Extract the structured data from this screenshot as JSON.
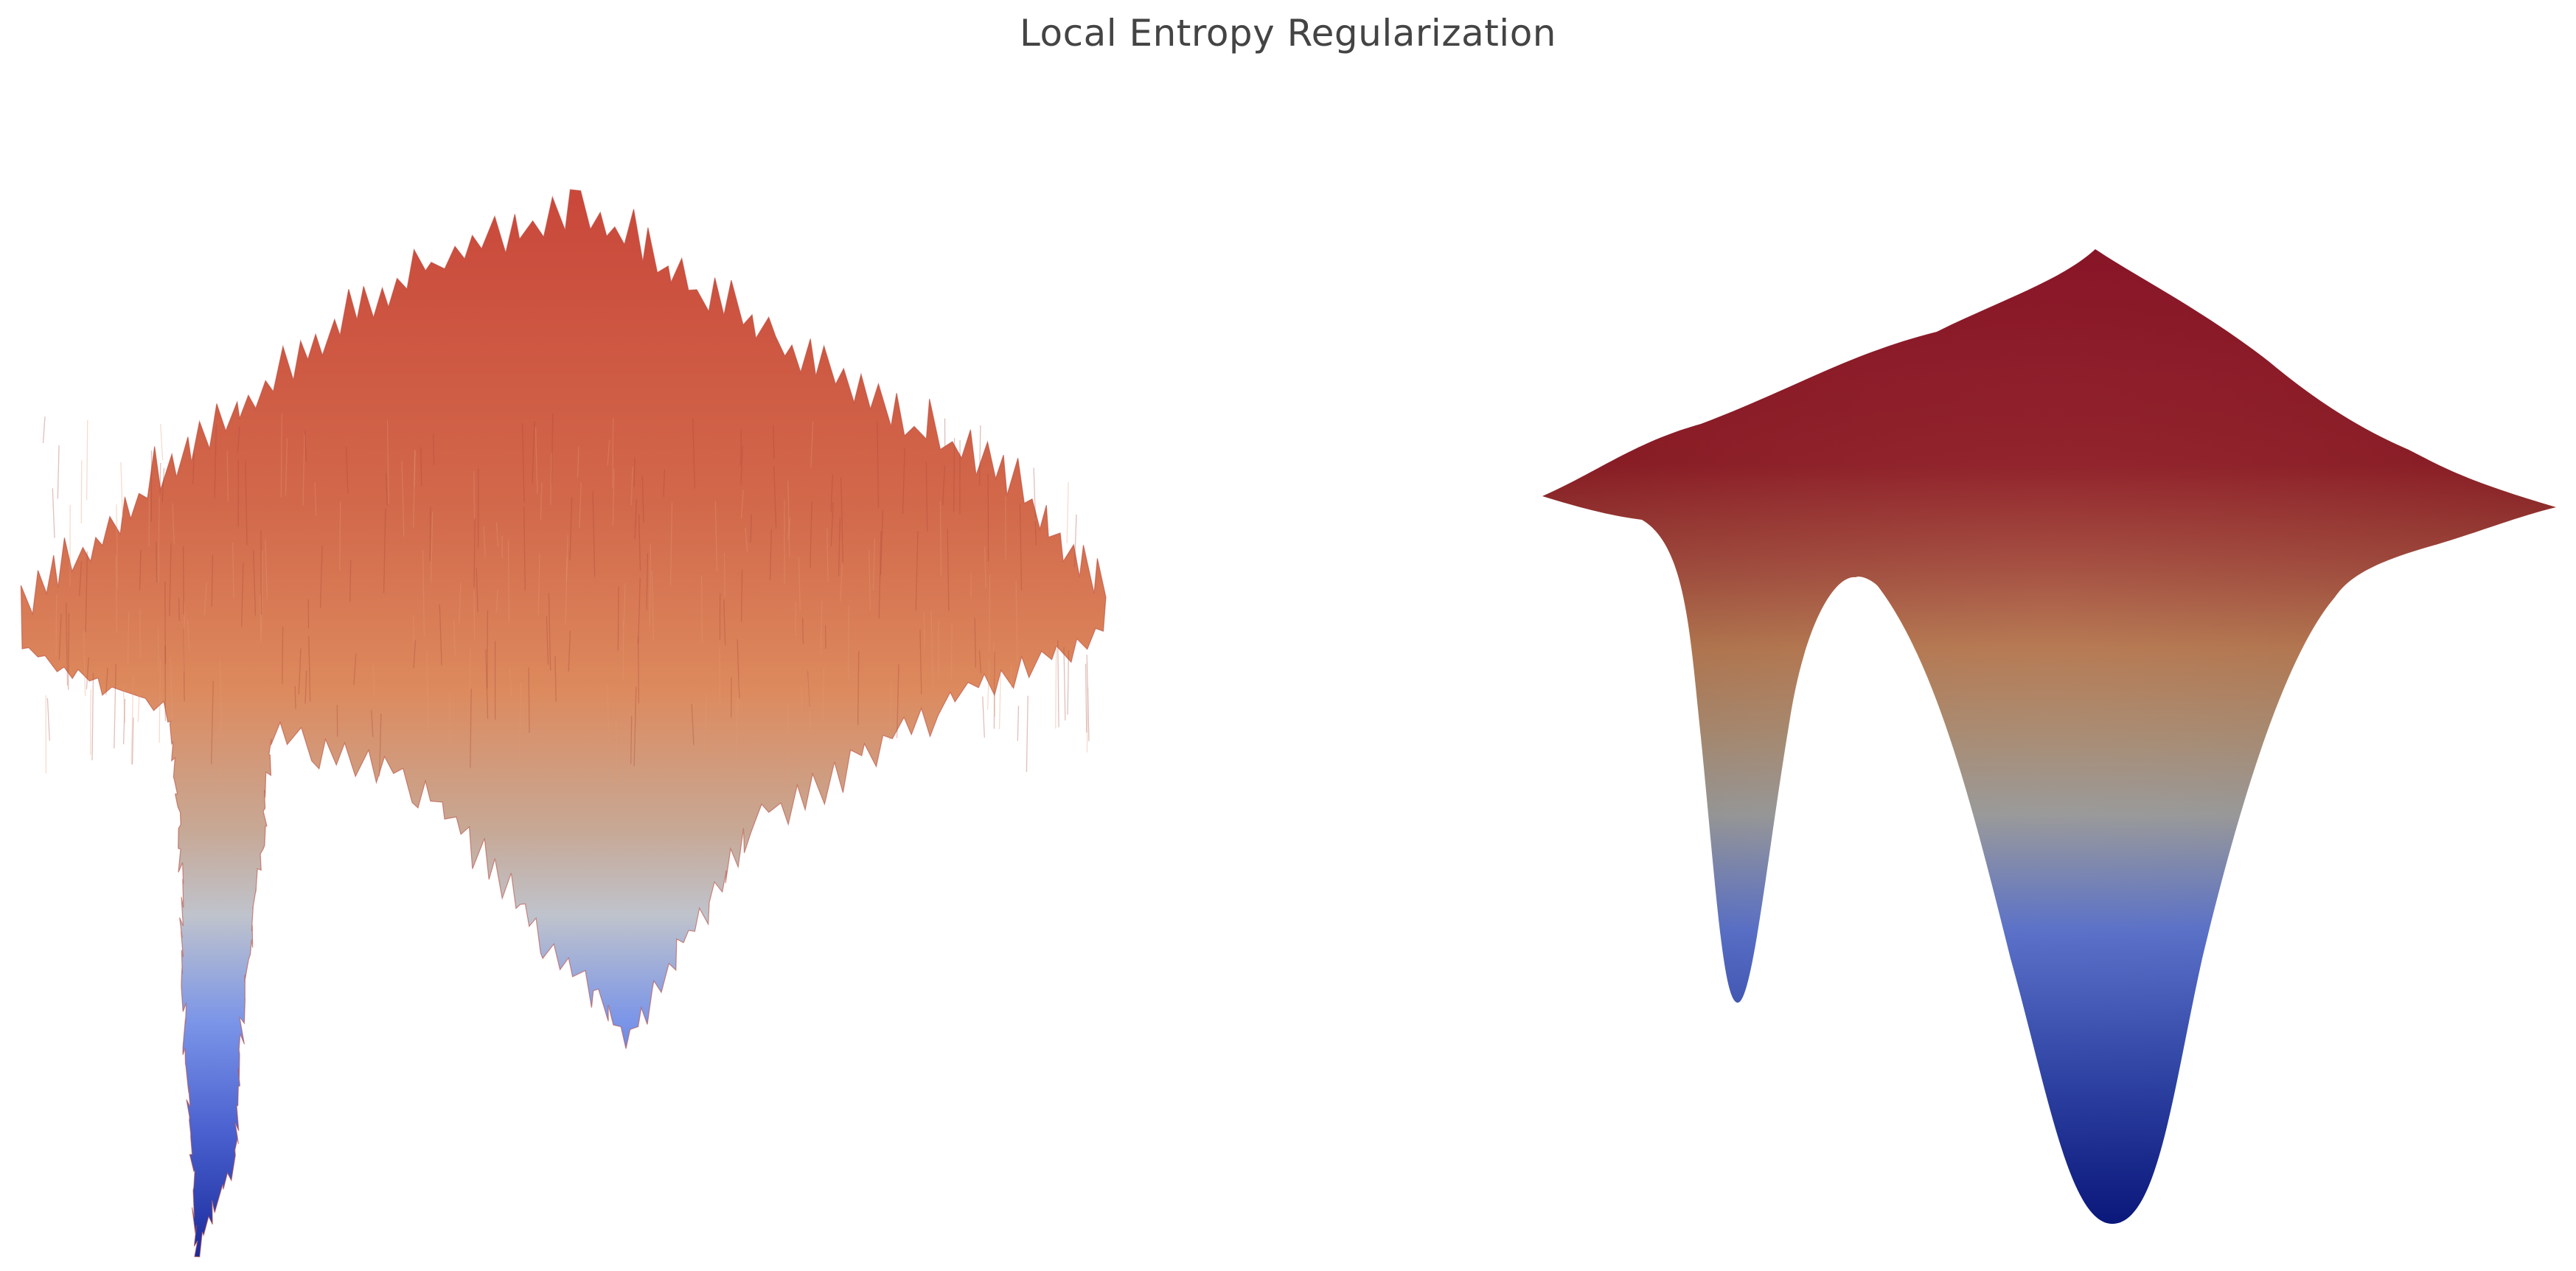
{
  "title": "Local Entropy Regularization",
  "chart_data": [
    {
      "type": "surface",
      "panel": "left",
      "description_key": "original",
      "colorscale": "coolwarm",
      "noisy": true,
      "features": [
        {
          "name": "narrow-deep-well",
          "depth": 1.0
        },
        {
          "name": "wide-shallow-well",
          "depth": 0.62
        }
      ],
      "colors": {
        "high": "#c9473a",
        "mid": "#dd8a5e",
        "neutral": "#c8c8c8",
        "low": "#6b86e6",
        "min": "#1a2a9c"
      }
    },
    {
      "type": "surface",
      "panel": "right",
      "description_key": "regularized",
      "colorscale": "coolwarm",
      "noisy": false,
      "features": [
        {
          "name": "narrow-well-smoothed",
          "depth": 0.62
        },
        {
          "name": "wide-well-smoothed",
          "depth": 1.0
        }
      ],
      "colors": {
        "high": "#8a0f22",
        "mid": "#b4754c",
        "neutral": "#9a9a9a",
        "low": "#5a72cf",
        "min": "#0c1a86"
      }
    }
  ]
}
